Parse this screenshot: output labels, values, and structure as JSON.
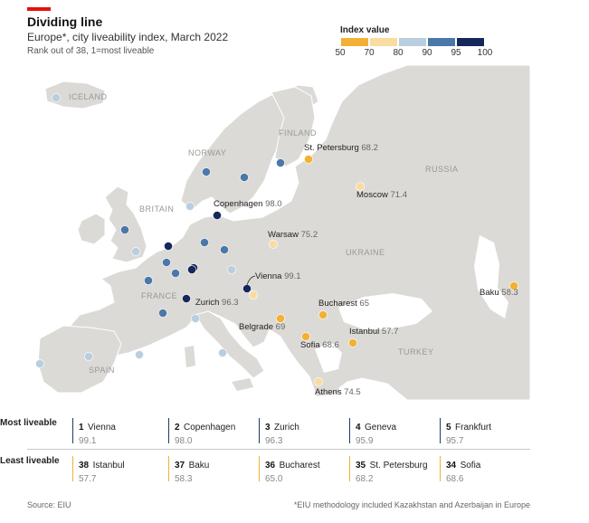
{
  "header": {
    "title": "Dividing line",
    "subtitle": "Europe*, city liveability index, March 2022",
    "note": "Rank out of 38, 1=most liveable"
  },
  "legend": {
    "title": "Index value",
    "ticks": [
      "50",
      "70",
      "80",
      "90",
      "95",
      "100"
    ],
    "bins": [
      {
        "from": 50,
        "to": 70,
        "color": "#f2b134"
      },
      {
        "from": 70,
        "to": 80,
        "color": "#f8dca0"
      },
      {
        "from": 80,
        "to": 90,
        "color": "#b9cfe0"
      },
      {
        "from": 90,
        "to": 95,
        "color": "#4a78a8"
      },
      {
        "from": 95,
        "to": 100,
        "color": "#16275c"
      }
    ]
  },
  "map": {
    "land_color": "#dcdad6",
    "sea_color": "#ffffff",
    "country_labels": [
      "ICELAND",
      "NORWAY",
      "FINLAND",
      "RUSSIA",
      "BRITAIN",
      "UKRAINE",
      "FRANCE",
      "SPAIN",
      "TURKEY"
    ],
    "labelled_cities": [
      {
        "name": "St. Petersburg",
        "value": "68.2"
      },
      {
        "name": "Moscow",
        "value": "71.4"
      },
      {
        "name": "Copenhagen",
        "value": "98.0"
      },
      {
        "name": "Warsaw",
        "value": "75.2"
      },
      {
        "name": "Vienna",
        "value": "99.1"
      },
      {
        "name": "Zurich",
        "value": "96.3"
      },
      {
        "name": "Bucharest",
        "value": "65"
      },
      {
        "name": "Baku",
        "value": "58.3"
      },
      {
        "name": "Belgrade",
        "value": "69"
      },
      {
        "name": "Istanbul",
        "value": "57.7"
      },
      {
        "name": "Sofia",
        "value": "68.6"
      },
      {
        "name": "Athens",
        "value": "74.5"
      }
    ]
  },
  "table": {
    "most_label": "Most liveable",
    "least_label": "Least liveable",
    "most": [
      {
        "rank": "1",
        "city": "Vienna",
        "value": "99.1"
      },
      {
        "rank": "2",
        "city": "Copenhagen",
        "value": "98.0"
      },
      {
        "rank": "3",
        "city": "Zurich",
        "value": "96.3"
      },
      {
        "rank": "4",
        "city": "Geneva",
        "value": "95.9"
      },
      {
        "rank": "5",
        "city": "Frankfurt",
        "value": "95.7"
      }
    ],
    "least": [
      {
        "rank": "38",
        "city": "Istanbul",
        "value": "57.7"
      },
      {
        "rank": "37",
        "city": "Baku",
        "value": "58.3"
      },
      {
        "rank": "36",
        "city": "Bucharest",
        "value": "65.0"
      },
      {
        "rank": "35",
        "city": "St. Petersburg",
        "value": "68.2"
      },
      {
        "rank": "34",
        "city": "Sofia",
        "value": "68.6"
      }
    ]
  },
  "footer": {
    "source": "Source: EIU",
    "footnote": "*EIU methodology included Kazakhstan and Azerbaijan in Europe"
  }
}
